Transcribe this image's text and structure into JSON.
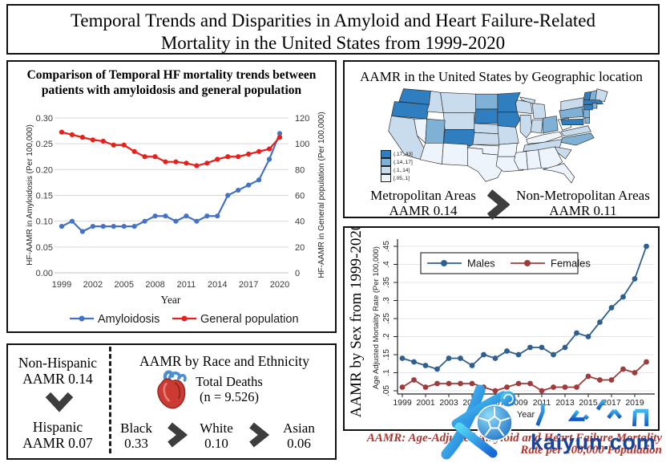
{
  "figure_title": "Temporal Trends and Disparities in Amyloid and Heart Failure-Related Mortality in the United States from 1999-2020",
  "chart_data": [
    {
      "type": "line",
      "title": "Comparison of Temporal HF mortality trends between patients with amyloidosis and general population",
      "xlabel": "Year",
      "x": [
        1999,
        2000,
        2001,
        2002,
        2003,
        2004,
        2005,
        2006,
        2007,
        2008,
        2009,
        2010,
        2011,
        2012,
        2013,
        2014,
        2015,
        2016,
        2017,
        2018,
        2019,
        2020
      ],
      "xticks": [
        1999,
        2002,
        2005,
        2008,
        2011,
        2014,
        2017,
        2020
      ],
      "ylabel_left": "HF-AAMR in Amyloidosis (Per 100,000)",
      "ylabel_right": "HF-AAMR in General population (Per 100,000)",
      "ylim_left": [
        0,
        0.3
      ],
      "ylim_right": [
        0,
        120
      ],
      "yticks_left": [
        "0.00",
        "0.05",
        "0.10",
        "0.15",
        "0.20",
        "0.25",
        "0.30"
      ],
      "yticks_right": [
        "0",
        "20",
        "40",
        "60",
        "80",
        "100",
        "120"
      ],
      "grid": true,
      "legend_position": "bottom",
      "series": [
        {
          "name": "Amyloidosis",
          "axis": "left",
          "color": "#4472c4",
          "values": [
            0.09,
            0.1,
            0.08,
            0.09,
            0.09,
            0.09,
            0.09,
            0.09,
            0.1,
            0.11,
            0.11,
            0.1,
            0.11,
            0.1,
            0.11,
            0.11,
            0.15,
            0.16,
            0.17,
            0.18,
            0.22,
            0.27
          ]
        },
        {
          "name": "General population",
          "axis": "right",
          "color": "#e8201a",
          "values": [
            109,
            107,
            105,
            103,
            102,
            99,
            99,
            94,
            90,
            90,
            86,
            86,
            85,
            83,
            85,
            88,
            90,
            90,
            92,
            94,
            96,
            105
          ]
        }
      ]
    },
    {
      "type": "line",
      "panel_title": "AAMR by Sex from 1999-2020",
      "ylabel": "Age Adjusted Mortality Rate (Per 100,000)",
      "xlabel": "Year",
      "x": [
        1999,
        2000,
        2001,
        2002,
        2003,
        2004,
        2005,
        2006,
        2007,
        2008,
        2009,
        2010,
        2011,
        2012,
        2013,
        2014,
        2015,
        2016,
        2017,
        2018,
        2019,
        2020
      ],
      "xticks": [
        1999,
        2001,
        2003,
        2005,
        2007,
        2009,
        2011,
        2013,
        2015,
        2017,
        2019
      ],
      "ylim": [
        0.05,
        0.45
      ],
      "yticks": [
        ".05",
        ".1",
        ".15",
        ".2",
        ".25",
        ".3",
        ".35",
        ".4",
        ".45"
      ],
      "grid": true,
      "legend_position": "top-inside",
      "series": [
        {
          "name": "Males",
          "color": "#2e5f8f",
          "values": [
            0.14,
            0.13,
            0.12,
            0.11,
            0.14,
            0.14,
            0.12,
            0.15,
            0.14,
            0.16,
            0.15,
            0.17,
            0.17,
            0.15,
            0.17,
            0.21,
            0.2,
            0.24,
            0.28,
            0.31,
            0.36,
            0.45
          ]
        },
        {
          "name": "Females",
          "color": "#9e3b3c",
          "values": [
            0.06,
            0.08,
            0.06,
            0.07,
            0.07,
            0.07,
            0.07,
            0.06,
            0.05,
            0.06,
            0.07,
            0.07,
            0.05,
            0.06,
            0.06,
            0.06,
            0.09,
            0.08,
            0.08,
            0.11,
            0.1,
            0.13
          ]
        }
      ]
    },
    {
      "type": "choropleth",
      "title": "AAMR in the United States by Geographic location",
      "legend_labels": [
        "(.17,.43]",
        "(.14,.17]",
        "(.1,.14]",
        "[.05,.1]"
      ],
      "palette_high_to_low": [
        "#2f7ebf",
        "#7fb0d6",
        "#c9dcee",
        "#eef4fb"
      ],
      "metro": {
        "label": "Metropolitan Areas",
        "value": "AAMR 0.14"
      },
      "nonmetro": {
        "label": "Non-Metropolitan Areas",
        "value": "AAMR 0.11"
      },
      "state_categories": {
        "WA": 4,
        "OR": 4,
        "CA": 2,
        "NV": 1,
        "ID": 2,
        "MT": 2,
        "WY": 2,
        "UT": 3,
        "CO": 4,
        "AZ": 1,
        "NM": 1,
        "ND": 3,
        "SD": 4,
        "NE": 2,
        "KS": 2,
        "OK": 1,
        "TX": 1,
        "MN": 4,
        "IA": 4,
        "MO": 2,
        "AR": 1,
        "LA": 1,
        "WI": 2,
        "IL": 2,
        "MI": 2,
        "MI_UP": 2,
        "IN": 2,
        "OH": 3,
        "KY": 1,
        "TN": 2,
        "MS": 1,
        "AL": 1,
        "GA": 1,
        "FL": 1,
        "SC": 2,
        "NC": 3,
        "VA": 2,
        "WV": 1,
        "PA": 3,
        "NY": 2,
        "NJ": 3,
        "MD": 4,
        "DE": 3,
        "VT": 4,
        "NH": 3,
        "ME": 2,
        "MA": 4,
        "CT": 4,
        "RI": 3
      }
    }
  ],
  "race_panel": {
    "title": "AAMR by Race and Ethnicity",
    "total_deaths_label": "Total Deaths",
    "total_deaths_n": "(n = 9.526)",
    "ethnicity": {
      "top_label": "Non-Hispanic",
      "top_value": "AAMR 0.14",
      "bottom_label": "Hispanic",
      "bottom_value": "AAMR 0.07"
    },
    "races": [
      {
        "name": "Black",
        "value": "0.33"
      },
      {
        "name": "White",
        "value": "0.10"
      },
      {
        "name": "Asian",
        "value": "0.06"
      }
    ]
  },
  "footnote": {
    "line1": "AAMR: Age-Adjusted Amyloid and Heart Failure Mortality",
    "line2": "Rate per 100,000 Population",
    "color": "#b2342d"
  },
  "watermark": {
    "logo_letter": "K",
    "brand_cn": "开云体育",
    "brand_domain": "kaiyun.com",
    "color_primary": "#1a7de0",
    "color_navy": "#18459a"
  },
  "colors": {
    "amyloidosis_blue": "#4472c4",
    "general_population_red": "#e8201a",
    "males_blue": "#2e5f8f",
    "females_red": "#9e3b3c",
    "chevron_gray": "#3d3d3d",
    "gridline_gray": "#d9d9d9"
  }
}
